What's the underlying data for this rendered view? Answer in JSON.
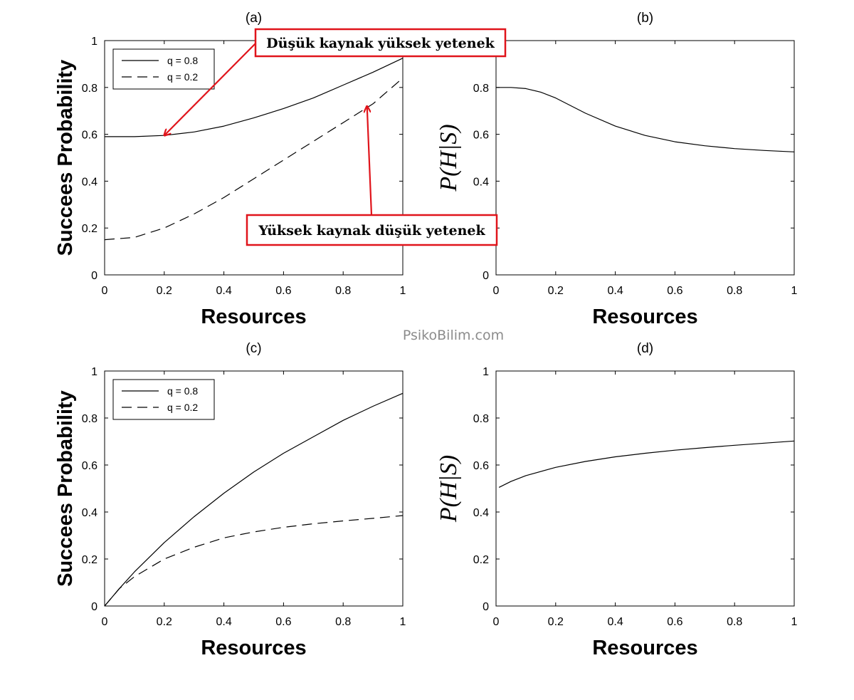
{
  "watermark": "PsikoBilim.com",
  "colors": {
    "line": "#000000",
    "annotation": "#e0141b",
    "watermark": "#8c8c8c"
  },
  "chart_data": [
    {
      "panel": "(a)",
      "type": "line",
      "title": "(a)",
      "xlabel": "Resources",
      "ylabel": "Succees Probability",
      "xlim": [
        0,
        1
      ],
      "ylim": [
        0,
        1
      ],
      "xticks": [
        "0",
        "0.2",
        "0.4",
        "0.6",
        "0.8",
        "1"
      ],
      "yticks": [
        "0",
        "0.2",
        "0.4",
        "0.6",
        "0.8",
        "1"
      ],
      "legend": "top-left",
      "grid": false,
      "x": [
        0,
        0.1,
        0.2,
        0.3,
        0.4,
        0.5,
        0.6,
        0.7,
        0.8,
        0.9,
        1.0
      ],
      "series": [
        {
          "name": "q = 0.8",
          "style": "solid",
          "values": [
            0.59,
            0.59,
            0.595,
            0.61,
            0.635,
            0.67,
            0.71,
            0.755,
            0.81,
            0.865,
            0.925
          ]
        },
        {
          "name": "q = 0.2",
          "style": "dashed",
          "values": [
            0.15,
            0.16,
            0.2,
            0.26,
            0.33,
            0.41,
            0.49,
            0.57,
            0.65,
            0.73,
            0.84
          ]
        }
      ],
      "annotations": [
        {
          "text": "Düşük kaynak yüksek yetenek",
          "target": [
            0.2,
            0.595
          ]
        },
        {
          "text": "Yüksek kaynak düşük yetenek",
          "target": [
            0.88,
            0.72
          ]
        }
      ]
    },
    {
      "panel": "(b)",
      "type": "line",
      "title": "(b)",
      "xlabel": "Resources",
      "ylabel": "P(H|S)",
      "xlim": [
        0,
        1
      ],
      "ylim": [
        0,
        1
      ],
      "xticks": [
        "0",
        "0.2",
        "0.4",
        "0.6",
        "0.8",
        "1"
      ],
      "yticks": [
        "0",
        "0.2",
        "0.4",
        "0.6",
        "0.8"
      ],
      "grid": false,
      "x": [
        0,
        0.05,
        0.1,
        0.15,
        0.2,
        0.3,
        0.4,
        0.5,
        0.6,
        0.7,
        0.8,
        0.9,
        1.0
      ],
      "series": [
        {
          "style": "solid",
          "values": [
            0.8,
            0.8,
            0.795,
            0.78,
            0.755,
            0.69,
            0.635,
            0.595,
            0.568,
            0.551,
            0.539,
            0.531,
            0.525
          ]
        }
      ]
    },
    {
      "panel": "(c)",
      "type": "line",
      "title": "(c)",
      "xlabel": "Resources",
      "ylabel": "Succees Probability",
      "xlim": [
        0,
        1
      ],
      "ylim": [
        0,
        1
      ],
      "xticks": [
        "0",
        "0.2",
        "0.4",
        "0.6",
        "0.8",
        "1"
      ],
      "yticks": [
        "0",
        "0.2",
        "0.4",
        "0.6",
        "0.8",
        "1"
      ],
      "legend": "top-left",
      "grid": false,
      "x": [
        0,
        0.05,
        0.1,
        0.2,
        0.3,
        0.4,
        0.5,
        0.6,
        0.7,
        0.8,
        0.9,
        1.0
      ],
      "series": [
        {
          "name": "q = 0.8",
          "style": "solid",
          "values": [
            0,
            0.075,
            0.145,
            0.27,
            0.38,
            0.48,
            0.57,
            0.65,
            0.72,
            0.79,
            0.85,
            0.905
          ]
        },
        {
          "name": "q = 0.2",
          "style": "dashed",
          "values": [
            0,
            0.075,
            0.125,
            0.2,
            0.25,
            0.29,
            0.315,
            0.335,
            0.35,
            0.362,
            0.373,
            0.385
          ]
        }
      ]
    },
    {
      "panel": "(d)",
      "type": "line",
      "title": "(d)",
      "xlabel": "Resources",
      "ylabel": "P(H|S)",
      "xlim": [
        0,
        1
      ],
      "ylim": [
        0,
        1
      ],
      "xticks": [
        "0",
        "0.2",
        "0.4",
        "0.6",
        "0.8",
        "1"
      ],
      "yticks": [
        "0",
        "0.2",
        "0.4",
        "0.6",
        "0.8",
        "1"
      ],
      "grid": false,
      "x": [
        0.01,
        0.05,
        0.1,
        0.2,
        0.3,
        0.4,
        0.5,
        0.6,
        0.7,
        0.8,
        0.9,
        1.0
      ],
      "series": [
        {
          "style": "solid",
          "values": [
            0.505,
            0.53,
            0.555,
            0.59,
            0.615,
            0.635,
            0.65,
            0.663,
            0.674,
            0.684,
            0.693,
            0.702
          ]
        }
      ]
    }
  ]
}
